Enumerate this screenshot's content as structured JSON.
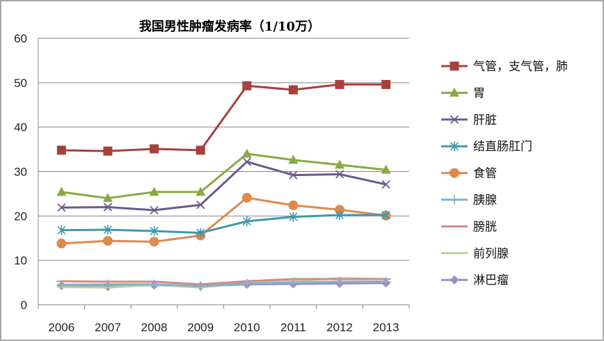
{
  "chart_data": {
    "type": "line",
    "title": "我国男性肿瘤发病率（1/10万）",
    "xlabel": "",
    "ylabel": "",
    "categories": [
      "2006",
      "2007",
      "2008",
      "2009",
      "2010",
      "2011",
      "2012",
      "2013"
    ],
    "ylim": [
      0,
      60
    ],
    "yticks": [
      0,
      10,
      20,
      30,
      40,
      50,
      60
    ],
    "grid": true,
    "legend_position": "right",
    "series": [
      {
        "name": "气管，支气管，肺",
        "color": "#A8403C",
        "marker": "square",
        "values": [
          34.8,
          34.6,
          35.1,
          34.8,
          49.3,
          48.4,
          49.6,
          49.6
        ]
      },
      {
        "name": "胃",
        "color": "#88AA44",
        "marker": "triangle",
        "values": [
          25.4,
          24.0,
          25.4,
          25.4,
          34.0,
          32.6,
          31.5,
          30.4
        ]
      },
      {
        "name": "肝脏",
        "color": "#6A5A8C",
        "marker": "x",
        "values": [
          21.9,
          22.0,
          21.3,
          22.5,
          32.2,
          29.2,
          29.4,
          27.1
        ]
      },
      {
        "name": "结直肠肛门",
        "color": "#3D9AAE",
        "marker": "asterisk",
        "values": [
          16.8,
          16.9,
          16.6,
          16.2,
          18.8,
          19.8,
          20.2,
          20.2
        ]
      },
      {
        "name": "食管",
        "color": "#E0894A",
        "marker": "circle",
        "values": [
          13.8,
          14.4,
          14.2,
          15.6,
          24.1,
          22.4,
          21.4,
          20.1
        ]
      },
      {
        "name": "胰腺",
        "color": "#88AECE",
        "marker": "plus",
        "values": [
          4.5,
          4.6,
          4.6,
          4.2,
          4.8,
          5.0,
          5.2,
          5.2
        ]
      },
      {
        "name": "膀胱",
        "color": "#D08B88",
        "marker": "dash",
        "values": [
          5.3,
          5.2,
          5.2,
          4.6,
          5.3,
          5.8,
          5.8,
          5.8
        ]
      },
      {
        "name": "前列腺",
        "color": "#B8D398",
        "marker": "dash",
        "values": [
          4.0,
          3.9,
          4.5,
          3.9,
          5.0,
          5.3,
          6.0,
          5.8
        ]
      },
      {
        "name": "淋巴瘤",
        "color": "#9D8EC0",
        "marker": "diamond",
        "values": [
          4.3,
          4.1,
          4.4,
          4.2,
          4.6,
          4.7,
          4.8,
          4.9
        ]
      }
    ]
  }
}
